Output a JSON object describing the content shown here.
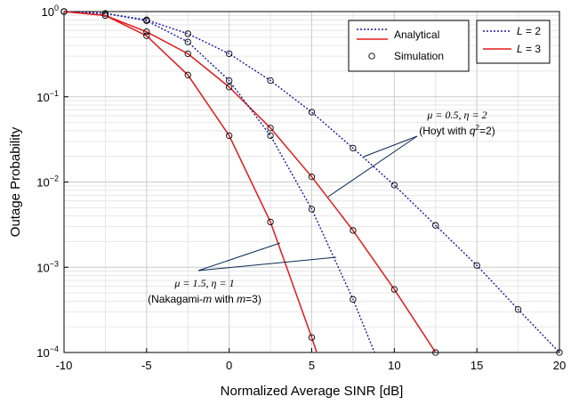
{
  "chart_data": {
    "type": "line",
    "xlabel": "Normalized Average SINR [dB]",
    "ylabel": "Outage Probability",
    "xlim": [
      -10,
      20
    ],
    "ylim": [
      0.0001,
      1
    ],
    "y_scale": "log",
    "grid": true,
    "x_ticks": [
      "-10",
      "-5",
      "0",
      "5",
      "10",
      "15",
      "20"
    ],
    "x_tick_values": [
      -10,
      -5,
      0,
      5,
      10,
      15,
      20
    ],
    "y_ticks": [
      {
        "base": "10",
        "exp": "0",
        "value": 1
      },
      {
        "base": "10",
        "exp": "−1",
        "value": 0.1
      },
      {
        "base": "10",
        "exp": "−2",
        "value": 0.01
      },
      {
        "base": "10",
        "exp": "−3",
        "value": 0.001
      },
      {
        "base": "10",
        "exp": "−4",
        "value": 0.0001
      }
    ],
    "legend_markers": {
      "position": "top-center",
      "analytical": "Analytical",
      "simulation": "Simulation"
    },
    "legend_diversity": {
      "position": "top-right",
      "entries": [
        {
          "var": "L",
          "rest": " = 2",
          "color": "#1a1aa6",
          "style": "dotted"
        },
        {
          "var": "L",
          "rest": " = 3",
          "color": "#e31a1c",
          "style": "solid"
        }
      ]
    },
    "annotations": [
      {
        "id": "hoyt",
        "line1": "μ = 0.5, η = 2",
        "line2_pre": "(Hoyt with ",
        "line2_var": "q",
        "line2_sup": "2",
        "line2_post": "=2)"
      },
      {
        "id": "nakagami",
        "line1": "μ = 1.5, η = 1",
        "line2_pre": "(Nakagami-",
        "line2_var": "m",
        "line2_mid": " with ",
        "line2_var2": "m",
        "line2_post": "=3)"
      }
    ],
    "series": [
      {
        "diversity": "L = 2",
        "group": "Hoyt",
        "color": "#1a1aa6",
        "style": "dotted",
        "x": [
          -10,
          -7.5,
          -5,
          -2.5,
          0,
          2.5,
          5,
          7.5,
          10,
          12.5,
          15,
          17.5,
          20
        ],
        "y": [
          1.0,
          0.95,
          0.8,
          0.55,
          0.32,
          0.155,
          0.066,
          0.025,
          0.0092,
          0.0031,
          0.00105,
          0.00032,
          0.0001
        ],
        "markers_x": [
          -10,
          -7.5,
          -5,
          -2.5,
          0,
          2.5,
          5,
          7.5,
          10,
          12.5,
          15,
          17.5,
          20
        ]
      },
      {
        "diversity": "L = 3",
        "group": "Hoyt",
        "color": "#e31a1c",
        "style": "solid",
        "x": [
          -10,
          -7.5,
          -5,
          -2.5,
          0,
          2.5,
          5,
          7.5,
          10,
          12.5
        ],
        "y": [
          1.0,
          0.9,
          0.58,
          0.32,
          0.13,
          0.043,
          0.0115,
          0.0027,
          0.00055,
          0.0001
        ],
        "markers_x": [
          -10,
          -7.5,
          -5,
          -2.5,
          0,
          2.5,
          5,
          7.5,
          10,
          12.5
        ]
      },
      {
        "diversity": "L = 2",
        "group": "Nakagami",
        "color": "#1a1aa6",
        "style": "dotted",
        "x": [
          -10,
          -7.5,
          -5,
          -2.5,
          0,
          2.5,
          5,
          7.5,
          8.8
        ],
        "y": [
          1.0,
          0.95,
          0.78,
          0.44,
          0.155,
          0.035,
          0.0048,
          0.00042,
          0.0001
        ],
        "markers_x": [
          -10,
          -7.5,
          -5,
          -2.5,
          0,
          2.5,
          5,
          7.5
        ]
      },
      {
        "diversity": "L = 3",
        "group": "Nakagami",
        "color": "#e31a1c",
        "style": "solid",
        "x": [
          -10,
          -7.5,
          -5,
          -2.5,
          0,
          2.5,
          5,
          5.3
        ],
        "y": [
          1.0,
          0.9,
          0.52,
          0.18,
          0.035,
          0.0034,
          0.00015,
          0.0001
        ],
        "markers_x": [
          -10,
          -7.5,
          -5,
          -2.5,
          0,
          2.5,
          5
        ]
      }
    ]
  }
}
